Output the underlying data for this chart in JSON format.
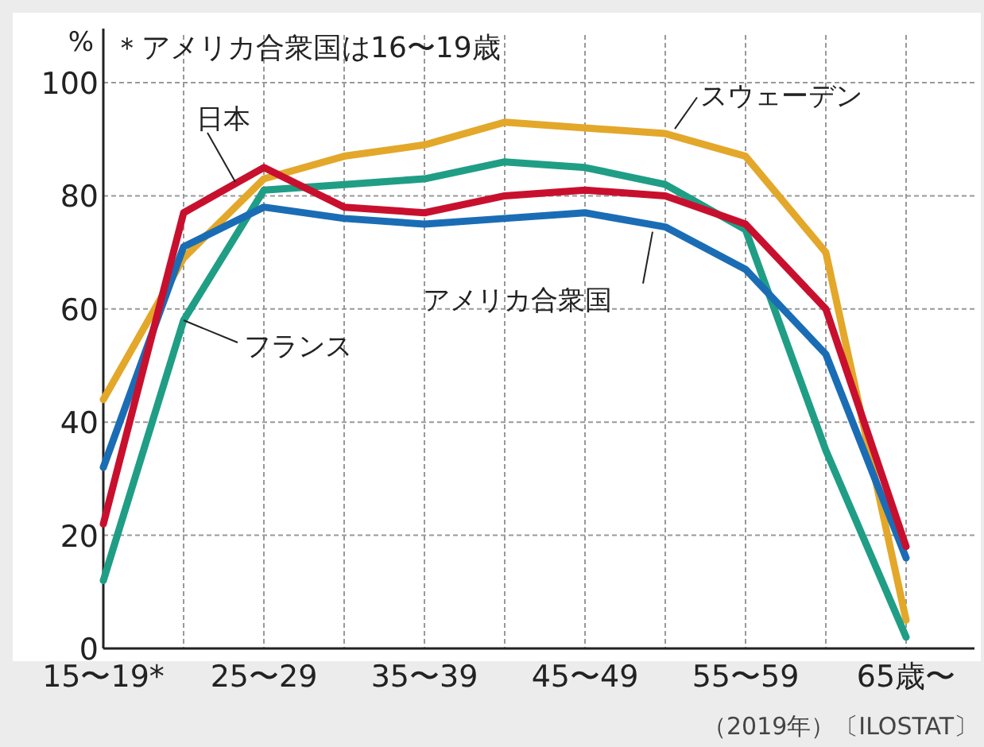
{
  "chart_data": {
    "type": "line",
    "ylabel": "%",
    "categories": [
      "15〜19*",
      null,
      "25〜29",
      null,
      "35〜39",
      null,
      "45〜49",
      null,
      "55〜59",
      null,
      "65歳〜"
    ],
    "ylim": [
      0,
      100
    ],
    "yticks": [
      0,
      20,
      40,
      60,
      80,
      100
    ],
    "grid": true,
    "legend": false,
    "line_style": "solid",
    "marker": "none",
    "series": [
      {
        "name": "スウェーデン",
        "color": "#e3a72a",
        "values": [
          44,
          69,
          83,
          87,
          89,
          93,
          92,
          91,
          87,
          70,
          5
        ]
      },
      {
        "name": "フランス",
        "color": "#1f9e85",
        "values": [
          12,
          58,
          81,
          82,
          83,
          86,
          85,
          82,
          74,
          35,
          2
        ]
      },
      {
        "name": "日本",
        "color": "#c8102e",
        "values": [
          22,
          77,
          85,
          78,
          77,
          80,
          81,
          80,
          75,
          60,
          18
        ]
      },
      {
        "name": "アメリカ合衆国",
        "color": "#1a6db5",
        "values": [
          32,
          71,
          78,
          76,
          75,
          76,
          77,
          74.5,
          67,
          52,
          16
        ]
      }
    ],
    "annotations": [
      "＊アメリカ合衆国は16〜19歳",
      "（2019年）〔ILOSTAT〕"
    ]
  }
}
